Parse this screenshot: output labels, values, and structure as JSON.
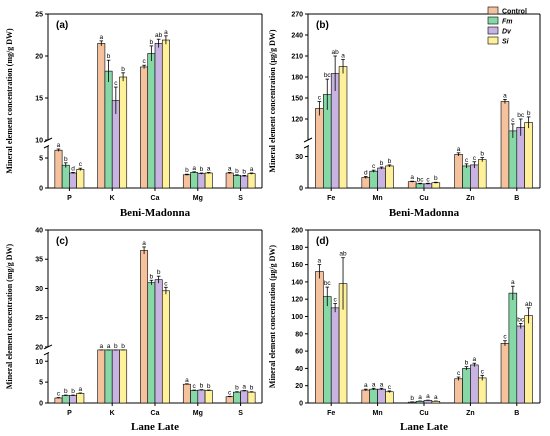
{
  "colors": {
    "Control": "#f5c29d",
    "Fm": "#86d9a7",
    "Dv": "#c9b3e2",
    "Si": "#fff19a"
  },
  "legend": [
    {
      "key": "Control",
      "label": "Control",
      "italic": false
    },
    {
      "key": "Fm",
      "label": "Fm",
      "italic": true
    },
    {
      "key": "Dv",
      "label": "Dv",
      "italic": true
    },
    {
      "key": "Si",
      "label": "Si",
      "italic": true
    }
  ],
  "chart_data": [
    {
      "type": "bar",
      "panel": "(a)",
      "xlabel": "Beni-Madonna",
      "ylabel": "Mineral element concentration (mg/g DW)",
      "categories": [
        "P",
        "K",
        "Ca",
        "Mg",
        "S"
      ],
      "y_break": [
        7,
        10
      ],
      "lower_ticks": [
        0,
        5
      ],
      "upper_ticks": [
        10,
        15,
        20,
        25
      ],
      "ylim": [
        0,
        25
      ],
      "series": [
        {
          "name": "Control",
          "values": [
            6.3,
            21.5,
            18.7,
            2.2,
            2.5
          ],
          "errors": [
            0.2,
            0.3,
            0.2,
            0.1,
            0.1
          ],
          "letters": [
            "a",
            "a",
            "c",
            "b",
            "a"
          ]
        },
        {
          "name": "Fm",
          "values": [
            3.8,
            18.2,
            20.3,
            2.6,
            2.1
          ],
          "errors": [
            0.4,
            1.3,
            0.9,
            0.1,
            0.1
          ],
          "letters": [
            "b",
            "b",
            "b",
            "a",
            "b"
          ]
        },
        {
          "name": "Dv",
          "values": [
            2.5,
            14.7,
            21.5,
            2.4,
            2.0
          ],
          "errors": [
            0.1,
            1.6,
            0.5,
            0.1,
            0.1
          ],
          "letters": [
            "d",
            "c",
            "ab",
            "b",
            "b"
          ]
        },
        {
          "name": "Si",
          "values": [
            3.1,
            17.5,
            21.9,
            2.5,
            2.4
          ],
          "errors": [
            0.2,
            0.5,
            0.5,
            0.1,
            0.1
          ],
          "letters": [
            "c",
            "b",
            "a",
            "a",
            "a"
          ]
        }
      ]
    },
    {
      "type": "bar",
      "panel": "(b)",
      "xlabel": "Beni-Madonna",
      "ylabel": "Mineral element concentration (μg/g DW)",
      "categories": [
        "Fe",
        "Mn",
        "Cu",
        "Zn",
        "B"
      ],
      "y_break": [
        40,
        90
      ],
      "lower_ticks": [
        0,
        30
      ],
      "upper_ticks": [
        120,
        150,
        180,
        210,
        240,
        270
      ],
      "ylim": [
        0,
        270
      ],
      "series": [
        {
          "name": "Control",
          "values": [
            135,
            10,
            6,
            32,
            145
          ],
          "errors": [
            10,
            1,
            0.5,
            1.5,
            3
          ],
          "letters": [
            "c",
            "d",
            "a",
            "a",
            "a"
          ]
        },
        {
          "name": "Fm",
          "values": [
            155,
            16,
            4,
            21,
            103
          ],
          "errors": [
            22,
            1,
            0.5,
            2,
            10
          ],
          "letters": [
            "bc",
            "c",
            "bc",
            "c",
            "c"
          ]
        },
        {
          "name": "Dv",
          "values": [
            185,
            19,
            4,
            22,
            108
          ],
          "errors": [
            25,
            1,
            0.5,
            3,
            12
          ],
          "letters": [
            "ab",
            "b",
            "c",
            "c",
            "bc"
          ]
        },
        {
          "name": "Si",
          "values": [
            195,
            21,
            5,
            27,
            115
          ],
          "errors": [
            10,
            1,
            0.5,
            2,
            8
          ],
          "letters": [
            "a",
            "b",
            "b",
            "b",
            "b"
          ]
        }
      ]
    },
    {
      "type": "bar",
      "panel": "(c)",
      "xlabel": "Lane Late",
      "ylabel": "Mineral element concentration (mg/g DW)",
      "categories": [
        "P",
        "K",
        "Ca",
        "Mg",
        "S"
      ],
      "y_break": [
        12,
        20
      ],
      "lower_ticks": [
        0,
        5,
        10
      ],
      "upper_ticks": [
        20,
        25,
        30,
        35,
        40
      ],
      "ylim": [
        0,
        40
      ],
      "series": [
        {
          "name": "Control",
          "values": [
            1.2,
            14.6,
            36.5,
            4.5,
            1.5
          ],
          "errors": [
            0.1,
            0.2,
            0.6,
            0.1,
            0.1
          ],
          "letters": [
            "c",
            "a",
            "a",
            "a",
            "c"
          ]
        },
        {
          "name": "Fm",
          "values": [
            1.8,
            14.5,
            31.0,
            3.0,
            2.6
          ],
          "errors": [
            0.1,
            0.2,
            0.4,
            0.1,
            0.1
          ],
          "letters": [
            "b",
            "a",
            "b",
            "c",
            "b"
          ]
        },
        {
          "name": "Dv",
          "values": [
            1.8,
            13.2,
            31.5,
            3.1,
            2.9
          ],
          "errors": [
            0.1,
            0.2,
            0.6,
            0.1,
            0.1
          ],
          "letters": [
            "b",
            "b",
            "b",
            "b",
            "a"
          ]
        },
        {
          "name": "Si",
          "values": [
            2.3,
            14.3,
            29.6,
            3.0,
            2.6
          ],
          "errors": [
            0.1,
            0.2,
            0.6,
            0.1,
            0.1
          ],
          "letters": [
            "a",
            "b",
            "c",
            "b",
            "b"
          ]
        }
      ]
    },
    {
      "type": "bar",
      "panel": "(d)",
      "xlabel": "Lane Late",
      "ylabel": "Mineral element concentration (μg/g DW)",
      "categories": [
        "Fe",
        "Mn",
        "Cu",
        "Zn",
        "B"
      ],
      "y_break": null,
      "lower_ticks": [
        0,
        20,
        40,
        60,
        80,
        100,
        120,
        140,
        160,
        180,
        200
      ],
      "upper_ticks": [],
      "ylim": [
        0,
        200
      ],
      "series": [
        {
          "name": "Control",
          "values": [
            152,
            15,
            1,
            28,
            69
          ],
          "errors": [
            8,
            1,
            0.3,
            2,
            3
          ],
          "letters": [
            "a",
            "a",
            "b",
            "c",
            "c"
          ]
        },
        {
          "name": "Fm",
          "values": [
            123,
            16,
            2,
            40,
            127
          ],
          "errors": [
            11,
            1,
            0.3,
            2,
            8
          ],
          "letters": [
            "bc",
            "a",
            "a",
            "b",
            "a"
          ]
        },
        {
          "name": "Dv",
          "values": [
            110,
            16,
            3,
            44,
            89
          ],
          "errors": [
            5,
            1,
            0.3,
            2,
            3
          ],
          "letters": [
            "c",
            "a",
            "a",
            "a",
            "bc"
          ]
        },
        {
          "name": "Si",
          "values": [
            138,
            13,
            2,
            29,
            101
          ],
          "errors": [
            30,
            1,
            0.3,
            3,
            9
          ],
          "letters": [
            "ab",
            "c",
            "a",
            "c",
            "ab"
          ]
        }
      ]
    }
  ]
}
